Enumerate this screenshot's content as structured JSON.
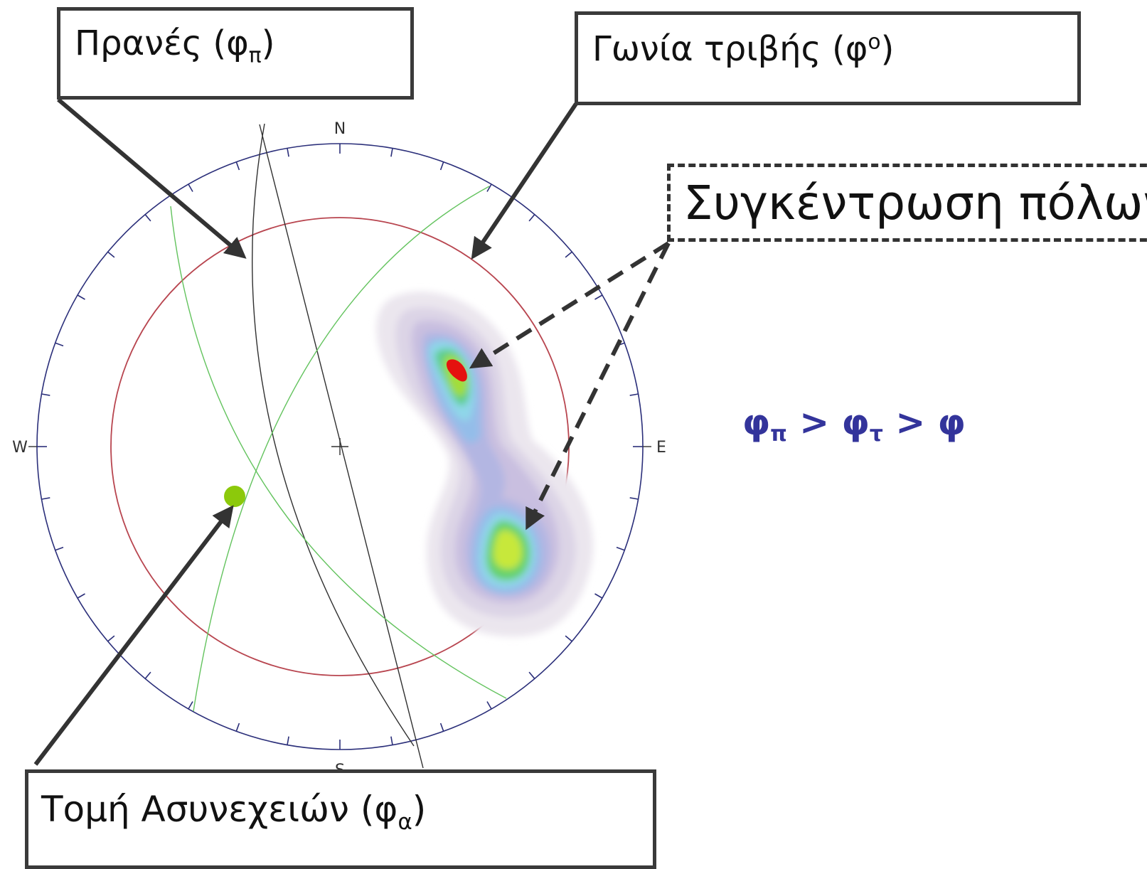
{
  "stereonet": {
    "directions": {
      "north": "N",
      "south": "S",
      "east": "E",
      "west": "W"
    }
  },
  "labels": {
    "slope": {
      "text": "Πρανές (φ",
      "subscript": "π",
      "suffix": ")"
    },
    "friction_angle": {
      "text": "Γωνία τριβής (φ",
      "superscript": "ο",
      "suffix": ")"
    },
    "pole_concentration": {
      "text": "Συγκέντρωση πόλων"
    },
    "discontinuity_intersection": {
      "text": "Τομή Ασυνεχειών (φ",
      "subscript": "α",
      "suffix": ")"
    }
  },
  "relation": {
    "phi": "φ",
    "sub_pi": "π",
    "sub_tau": "τ",
    "gt": ">"
  },
  "colors": {
    "primitive_circle": "#2b2f7a",
    "friction_circle": "#b8454f",
    "slope_plane": "#303030",
    "discontinuity_planes": "#63c35e",
    "intersection_point": "#8cc90b",
    "relation_text": "#33349b",
    "arrows": "#333333"
  }
}
